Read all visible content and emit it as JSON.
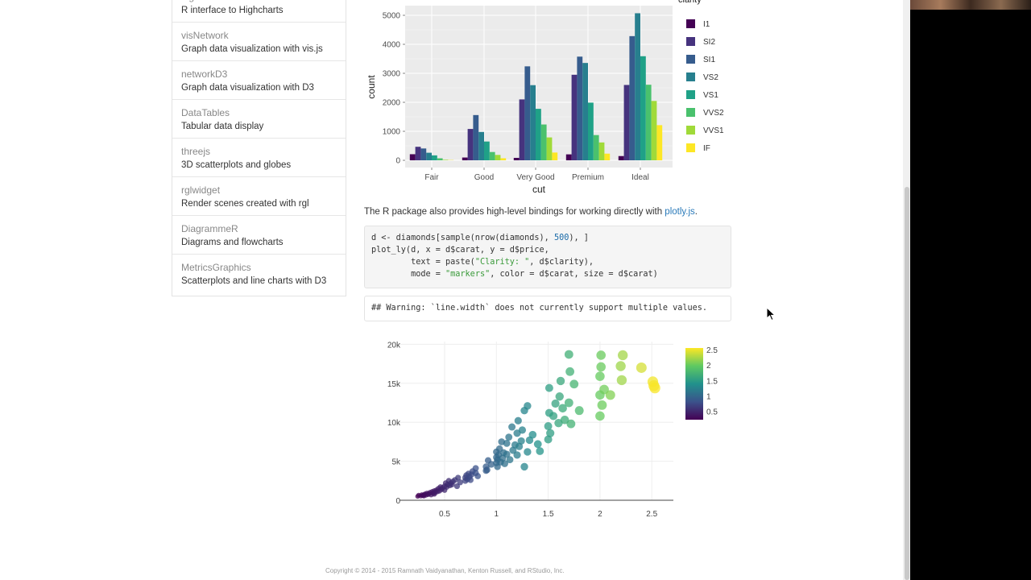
{
  "sidebar": {
    "items": [
      {
        "name": "highcharter",
        "desc": "R interface to Highcharts"
      },
      {
        "name": "visNetwork",
        "desc": "Graph data visualization with vis.js"
      },
      {
        "name": "networkD3",
        "desc": "Graph data visualization with D3"
      },
      {
        "name": "DataTables",
        "desc": "Tabular data display"
      },
      {
        "name": "threejs",
        "desc": "3D scatterplots and globes"
      },
      {
        "name": "rglwidget",
        "desc": "Render scenes created with rgl"
      },
      {
        "name": "DiagrammeR",
        "desc": "Diagrams and flowcharts"
      },
      {
        "name": "MetricsGraphics",
        "desc": "Scatterplots and line charts with D3"
      }
    ]
  },
  "paragraph": {
    "text": "The R package also provides high-level bindings for working directly with ",
    "link": "plotly.js",
    "end": "."
  },
  "code": {
    "line1_a": "d <- diamonds[sample(nrow(diamonds), ",
    "line1_num": "500",
    "line1_b": "), ]",
    "line2": "plot_ly(d, x = d$carat, y = d$price,",
    "line3_a": "        text = paste(",
    "line3_str": "\"Clarity: \"",
    "line3_b": ", d$clarity),",
    "line4_a": "        mode = ",
    "line4_str": "\"markers\"",
    "line4_b": ", color = d$carat, size = d$carat)"
  },
  "output": {
    "text": "## Warning: `line.width` does not currently support multiple values."
  },
  "footer": {
    "text": "Copyright © 2014 - 2015 Ramnath Vaidyanathan, Kenton Russell, and RStudio, Inc."
  },
  "chart_data": [
    {
      "type": "bar",
      "xlabel": "cut",
      "ylabel": "count",
      "legend_title": "clarity",
      "legend_position": "right",
      "ylim": [
        0,
        5300
      ],
      "yticks": [
        0,
        1000,
        2000,
        3000,
        4000,
        5000
      ],
      "categories": [
        "Fair",
        "Good",
        "Very Good",
        "Premium",
        "Ideal"
      ],
      "series": [
        {
          "name": "I1",
          "color": "#440154",
          "values": [
            210,
            96,
            84,
            205,
            146
          ]
        },
        {
          "name": "SI2",
          "color": "#46337e",
          "values": [
            466,
            1081,
            2100,
            2949,
            2598
          ]
        },
        {
          "name": "SI1",
          "color": "#365c8d",
          "values": [
            408,
            1560,
            3240,
            3575,
            4282
          ]
        },
        {
          "name": "VS2",
          "color": "#277f8e",
          "values": [
            261,
            978,
            2591,
            3357,
            5071
          ]
        },
        {
          "name": "VS1",
          "color": "#1fa187",
          "values": [
            170,
            648,
            1775,
            1989,
            3589
          ]
        },
        {
          "name": "VVS2",
          "color": "#4ac16d",
          "values": [
            69,
            286,
            1235,
            870,
            2606
          ]
        },
        {
          "name": "VVS1",
          "color": "#a0da39",
          "values": [
            17,
            186,
            789,
            616,
            2047
          ]
        },
        {
          "name": "IF",
          "color": "#fde725",
          "values": [
            9,
            71,
            268,
            230,
            1212
          ]
        }
      ]
    },
    {
      "type": "scatter",
      "x_axis": {
        "range": [
          0.2,
          2.7
        ],
        "ticks": [
          0.5,
          1,
          1.5,
          2,
          2.5
        ],
        "tick_labels": [
          "0.5",
          "1",
          "1.5",
          "2",
          "2.5"
        ]
      },
      "y_axis": {
        "range": [
          0,
          20000
        ],
        "ticks": [
          0,
          5000,
          10000,
          15000,
          20000
        ],
        "tick_labels": [
          "0",
          "5k",
          "10k",
          "15k",
          "20k"
        ]
      },
      "colorbar": {
        "range": [
          0.23,
          2.55
        ],
        "ticks": [
          0.5,
          1,
          1.5,
          2,
          2.5
        ],
        "tick_labels": [
          "0.5",
          "1",
          "1.5",
          "2",
          "2.5"
        ]
      },
      "points": [
        [
          0.24,
          500
        ],
        [
          0.25,
          650
        ],
        [
          0.27,
          550
        ],
        [
          0.28,
          700
        ],
        [
          0.29,
          600
        ],
        [
          0.3,
          700
        ],
        [
          0.3,
          550
        ],
        [
          0.31,
          800
        ],
        [
          0.32,
          650
        ],
        [
          0.33,
          900
        ],
        [
          0.34,
          750
        ],
        [
          0.35,
          850
        ],
        [
          0.36,
          1000
        ],
        [
          0.37,
          700
        ],
        [
          0.38,
          1100
        ],
        [
          0.39,
          900
        ],
        [
          0.4,
          1200
        ],
        [
          0.4,
          800
        ],
        [
          0.41,
          1000
        ],
        [
          0.42,
          1300
        ],
        [
          0.43,
          1100
        ],
        [
          0.44,
          1500
        ],
        [
          0.45,
          1200
        ],
        [
          0.46,
          1700
        ],
        [
          0.47,
          1400
        ],
        [
          0.48,
          1600
        ],
        [
          0.5,
          1800
        ],
        [
          0.5,
          1300
        ],
        [
          0.51,
          2200
        ],
        [
          0.52,
          1700
        ],
        [
          0.53,
          2000
        ],
        [
          0.54,
          2500
        ],
        [
          0.55,
          1900
        ],
        [
          0.56,
          2200
        ],
        [
          0.57,
          2000
        ],
        [
          0.58,
          2400
        ],
        [
          0.6,
          2600
        ],
        [
          0.62,
          1800
        ],
        [
          0.63,
          2900
        ],
        [
          0.65,
          2300
        ],
        [
          0.7,
          2500
        ],
        [
          0.7,
          2900
        ],
        [
          0.71,
          3200
        ],
        [
          0.72,
          2700
        ],
        [
          0.73,
          3400
        ],
        [
          0.74,
          3000
        ],
        [
          0.75,
          2600
        ],
        [
          0.76,
          3300
        ],
        [
          0.77,
          3700
        ],
        [
          0.8,
          3500
        ],
        [
          0.8,
          4100
        ],
        [
          0.82,
          3100
        ],
        [
          0.9,
          3800
        ],
        [
          0.9,
          4300
        ],
        [
          0.91,
          3900
        ],
        [
          0.92,
          5100
        ],
        [
          0.95,
          4600
        ],
        [
          1.0,
          4800
        ],
        [
          1.0,
          5500
        ],
        [
          1.0,
          6200
        ],
        [
          1.01,
          5200
        ],
        [
          1.01,
          4300
        ],
        [
          1.02,
          5800
        ],
        [
          1.03,
          6600
        ],
        [
          1.04,
          4900
        ],
        [
          1.05,
          7500
        ],
        [
          1.06,
          5400
        ],
        [
          1.07,
          6100
        ],
        [
          1.08,
          4700
        ],
        [
          1.1,
          5900
        ],
        [
          1.1,
          7300
        ],
        [
          1.12,
          8100
        ],
        [
          1.13,
          5200
        ],
        [
          1.15,
          9400
        ],
        [
          1.16,
          6400
        ],
        [
          1.18,
          7100
        ],
        [
          1.2,
          5800
        ],
        [
          1.2,
          8600
        ],
        [
          1.21,
          10200
        ],
        [
          1.22,
          6900
        ],
        [
          1.24,
          7600
        ],
        [
          1.25,
          9000
        ],
        [
          1.27,
          11500
        ],
        [
          1.27,
          4300
        ],
        [
          1.3,
          6200
        ],
        [
          1.3,
          12100
        ],
        [
          1.32,
          7700
        ],
        [
          1.35,
          8400
        ],
        [
          1.4,
          7200
        ],
        [
          1.42,
          6300
        ],
        [
          1.5,
          7800
        ],
        [
          1.5,
          9500
        ],
        [
          1.51,
          11200
        ],
        [
          1.51,
          14400
        ],
        [
          1.52,
          8600
        ],
        [
          1.55,
          10800
        ],
        [
          1.57,
          12400
        ],
        [
          1.6,
          9900
        ],
        [
          1.61,
          13300
        ],
        [
          1.62,
          15300
        ],
        [
          1.64,
          11800
        ],
        [
          1.66,
          10300
        ],
        [
          1.7,
          12500
        ],
        [
          1.7,
          18700
        ],
        [
          1.71,
          16500
        ],
        [
          1.72,
          9800
        ],
        [
          1.75,
          14900
        ],
        [
          1.8,
          11500
        ],
        [
          2.0,
          10800
        ],
        [
          2.0,
          13500
        ],
        [
          2.0,
          15900
        ],
        [
          2.01,
          17100
        ],
        [
          2.01,
          18600
        ],
        [
          2.02,
          12200
        ],
        [
          2.04,
          14200
        ],
        [
          2.1,
          13500
        ],
        [
          2.2,
          17200
        ],
        [
          2.22,
          18600
        ],
        [
          2.21,
          15400
        ],
        [
          2.4,
          17000
        ],
        [
          2.51,
          15200
        ],
        [
          2.52,
          14700
        ],
        [
          2.53,
          14400
        ]
      ]
    }
  ]
}
